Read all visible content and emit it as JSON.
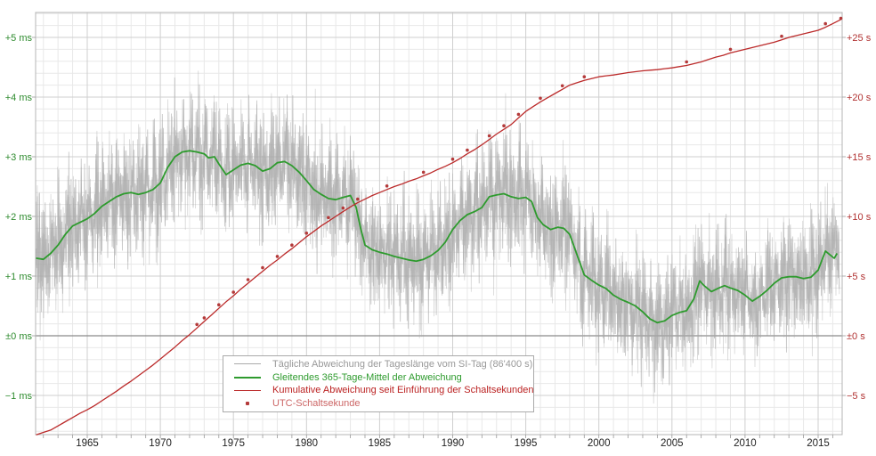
{
  "chart_data": {
    "type": "line",
    "x_axis": {
      "tick_labels": [
        "1965",
        "1970",
        "1975",
        "1980",
        "1985",
        "1990",
        "1995",
        "2000",
        "2005",
        "2010",
        "2015"
      ],
      "tick_values": [
        1965,
        1970,
        1975,
        1980,
        1985,
        1990,
        1995,
        2000,
        2005,
        2010,
        2015
      ],
      "minor_step_years": 1,
      "major_step_years": 5,
      "range": [
        1961.47,
        2016.65
      ],
      "label_color": "#222222"
    },
    "y_axis_left": {
      "unit": "ms",
      "tick_labels": [
        "+5 ms",
        "+4 ms",
        "+3 ms",
        "+2 ms",
        "+1 ms",
        "±0 ms",
        "−1 ms"
      ],
      "tick_values": [
        5,
        4,
        3,
        2,
        1,
        0,
        -1
      ],
      "range_ms": [
        -1.66,
        5.42
      ],
      "label_color": "#2e8b2e"
    },
    "y_axis_right": {
      "unit": "s",
      "tick_labels": [
        "+25 s",
        "+20 s",
        "+15 s",
        "+10 s",
        "+5 s",
        "±0 s",
        "−5 s"
      ],
      "tick_values": [
        25,
        20,
        15,
        10,
        5,
        0,
        -5
      ],
      "range_s": [
        -8.3,
        27.1
      ],
      "seconds_per_ms": 5,
      "label_color": "#b03030"
    },
    "grid": {
      "minor_color": "#e8e8e8",
      "major_color": "#cfcfcf",
      "zero_line_color": "#8a8a8a",
      "border_color": "#b4b4b4",
      "tick_color": "#999999"
    },
    "series": [
      {
        "name": "daily-deviation",
        "legend": "Tägliche Abweichung der Tageslänge vom SI-Tag (86'400 s)",
        "legend_color": "#999999",
        "color": "#a6a6a6",
        "axis": "left",
        "type": "noise-band",
        "noise": {
          "seeds": [
            11,
            23
          ],
          "step_years": 0.0385,
          "semiannual_amp": 0.28,
          "spike_base": 0.15,
          "spike_rand": 0.85,
          "spike_scale": 0.95,
          "boost_chance": 0.08,
          "boost_factor": 1.35,
          "opacities": [
            0.7,
            0.45
          ]
        }
      },
      {
        "name": "mean-365",
        "legend": "Gleitendes 365-Tage-Mittel der Abweichung",
        "legend_color": "#2e9b2e",
        "color": "#2e9b2e",
        "axis": "left",
        "type": "line",
        "points": [
          [
            1961.5,
            1.3
          ],
          [
            1962,
            1.28
          ],
          [
            1962.5,
            1.38
          ],
          [
            1963,
            1.52
          ],
          [
            1963.5,
            1.7
          ],
          [
            1964,
            1.84
          ],
          [
            1964.5,
            1.9
          ],
          [
            1965,
            1.96
          ],
          [
            1965.5,
            2.05
          ],
          [
            1966,
            2.17
          ],
          [
            1966.5,
            2.25
          ],
          [
            1967,
            2.33
          ],
          [
            1967.5,
            2.38
          ],
          [
            1968,
            2.4
          ],
          [
            1968.5,
            2.37
          ],
          [
            1969,
            2.4
          ],
          [
            1969.5,
            2.45
          ],
          [
            1970,
            2.56
          ],
          [
            1970.5,
            2.82
          ],
          [
            1971,
            3.0
          ],
          [
            1971.5,
            3.08
          ],
          [
            1972,
            3.1
          ],
          [
            1972.5,
            3.08
          ],
          [
            1973,
            3.05
          ],
          [
            1973.3,
            2.98
          ],
          [
            1973.7,
            3.0
          ],
          [
            1974,
            2.88
          ],
          [
            1974.5,
            2.7
          ],
          [
            1975,
            2.78
          ],
          [
            1975.5,
            2.86
          ],
          [
            1976,
            2.89
          ],
          [
            1976.5,
            2.85
          ],
          [
            1977,
            2.76
          ],
          [
            1977.5,
            2.8
          ],
          [
            1978,
            2.9
          ],
          [
            1978.5,
            2.92
          ],
          [
            1979,
            2.85
          ],
          [
            1979.5,
            2.74
          ],
          [
            1980,
            2.6
          ],
          [
            1980.5,
            2.45
          ],
          [
            1981,
            2.37
          ],
          [
            1981.5,
            2.3
          ],
          [
            1982,
            2.28
          ],
          [
            1982.5,
            2.32
          ],
          [
            1983,
            2.35
          ],
          [
            1983.4,
            2.15
          ],
          [
            1983.7,
            1.8
          ],
          [
            1984,
            1.52
          ],
          [
            1984.5,
            1.44
          ],
          [
            1985,
            1.4
          ],
          [
            1985.5,
            1.37
          ],
          [
            1986,
            1.33
          ],
          [
            1986.5,
            1.3
          ],
          [
            1987,
            1.27
          ],
          [
            1987.5,
            1.25
          ],
          [
            1988,
            1.28
          ],
          [
            1988.5,
            1.34
          ],
          [
            1989,
            1.43
          ],
          [
            1989.5,
            1.57
          ],
          [
            1990,
            1.78
          ],
          [
            1990.5,
            1.93
          ],
          [
            1991,
            2.03
          ],
          [
            1991.5,
            2.08
          ],
          [
            1992,
            2.15
          ],
          [
            1992.5,
            2.33
          ],
          [
            1993,
            2.36
          ],
          [
            1993.5,
            2.38
          ],
          [
            1994,
            2.33
          ],
          [
            1994.5,
            2.3
          ],
          [
            1995,
            2.32
          ],
          [
            1995.4,
            2.25
          ],
          [
            1995.8,
            1.98
          ],
          [
            1996.2,
            1.86
          ],
          [
            1996.7,
            1.78
          ],
          [
            1997.2,
            1.82
          ],
          [
            1997.6,
            1.8
          ],
          [
            1998,
            1.7
          ],
          [
            1998.5,
            1.36
          ],
          [
            1999,
            1.02
          ],
          [
            1999.5,
            0.93
          ],
          [
            2000,
            0.85
          ],
          [
            2000.5,
            0.79
          ],
          [
            2001,
            0.68
          ],
          [
            2001.5,
            0.61
          ],
          [
            2002,
            0.56
          ],
          [
            2002.5,
            0.5
          ],
          [
            2003,
            0.4
          ],
          [
            2003.5,
            0.28
          ],
          [
            2004,
            0.22
          ],
          [
            2004.5,
            0.25
          ],
          [
            2005,
            0.34
          ],
          [
            2005.5,
            0.39
          ],
          [
            2006,
            0.42
          ],
          [
            2006.5,
            0.62
          ],
          [
            2006.9,
            0.92
          ],
          [
            2007.2,
            0.84
          ],
          [
            2007.7,
            0.74
          ],
          [
            2008.2,
            0.8
          ],
          [
            2008.6,
            0.84
          ],
          [
            2009,
            0.8
          ],
          [
            2009.5,
            0.76
          ],
          [
            2010,
            0.68
          ],
          [
            2010.5,
            0.58
          ],
          [
            2011,
            0.66
          ],
          [
            2011.5,
            0.76
          ],
          [
            2012,
            0.88
          ],
          [
            2012.5,
            0.97
          ],
          [
            2013,
            0.99
          ],
          [
            2013.5,
            0.99
          ],
          [
            2014,
            0.96
          ],
          [
            2014.5,
            0.98
          ],
          [
            2015,
            1.1
          ],
          [
            2015.5,
            1.42
          ],
          [
            2015.8,
            1.36
          ],
          [
            2016.1,
            1.3
          ],
          [
            2016.3,
            1.38
          ]
        ]
      },
      {
        "name": "cumulative-deviation",
        "legend": "Kumulative Abweichung seit Einführung der Schaltsekunden",
        "legend_color": "#bb2222",
        "color": "#bb2a2a",
        "axis": "right",
        "type": "line",
        "points": [
          [
            1961.5,
            -8.3
          ],
          [
            1962,
            -8.1
          ],
          [
            1962.5,
            -7.9
          ],
          [
            1963,
            -7.55
          ],
          [
            1963.5,
            -7.2
          ],
          [
            1964,
            -6.85
          ],
          [
            1964.5,
            -6.5
          ],
          [
            1965,
            -6.2
          ],
          [
            1965.5,
            -5.85
          ],
          [
            1966,
            -5.45
          ],
          [
            1966.5,
            -5.05
          ],
          [
            1967,
            -4.65
          ],
          [
            1967.5,
            -4.2
          ],
          [
            1968,
            -3.8
          ],
          [
            1968.5,
            -3.35
          ],
          [
            1969,
            -2.9
          ],
          [
            1969.5,
            -2.45
          ],
          [
            1970,
            -1.95
          ],
          [
            1970.5,
            -1.45
          ],
          [
            1971,
            -0.95
          ],
          [
            1971.5,
            -0.4
          ],
          [
            1972,
            0.1
          ],
          [
            1972.5,
            0.65
          ],
          [
            1973,
            1.2
          ],
          [
            1973.5,
            1.75
          ],
          [
            1974,
            2.3
          ],
          [
            1974.5,
            2.85
          ],
          [
            1975,
            3.35
          ],
          [
            1975.5,
            3.9
          ],
          [
            1976,
            4.4
          ],
          [
            1976.5,
            4.9
          ],
          [
            1977,
            5.4
          ],
          [
            1977.5,
            5.9
          ],
          [
            1978,
            6.35
          ],
          [
            1978.5,
            6.85
          ],
          [
            1979,
            7.3
          ],
          [
            1979.5,
            7.8
          ],
          [
            1980,
            8.3
          ],
          [
            1980.5,
            8.75
          ],
          [
            1981,
            9.2
          ],
          [
            1981.5,
            9.6
          ],
          [
            1982,
            10.0
          ],
          [
            1982.5,
            10.4
          ],
          [
            1983,
            10.8
          ],
          [
            1983.5,
            11.15
          ],
          [
            1984,
            11.45
          ],
          [
            1984.5,
            11.75
          ],
          [
            1985,
            12.0
          ],
          [
            1985.5,
            12.25
          ],
          [
            1986,
            12.5
          ],
          [
            1986.5,
            12.7
          ],
          [
            1987,
            12.95
          ],
          [
            1987.5,
            13.15
          ],
          [
            1988,
            13.4
          ],
          [
            1988.5,
            13.65
          ],
          [
            1989,
            13.95
          ],
          [
            1989.5,
            14.2
          ],
          [
            1990,
            14.5
          ],
          [
            1990.5,
            14.85
          ],
          [
            1991,
            15.25
          ],
          [
            1991.5,
            15.6
          ],
          [
            1992,
            16.0
          ],
          [
            1992.5,
            16.45
          ],
          [
            1993,
            16.9
          ],
          [
            1993.5,
            17.3
          ],
          [
            1994,
            17.7
          ],
          [
            1994.5,
            18.25
          ],
          [
            1995,
            18.8
          ],
          [
            1995.5,
            19.2
          ],
          [
            1996,
            19.6
          ],
          [
            1996.5,
            19.95
          ],
          [
            1997,
            20.3
          ],
          [
            1997.5,
            20.65
          ],
          [
            1998,
            21.0
          ],
          [
            1998.5,
            21.2
          ],
          [
            1999,
            21.4
          ],
          [
            1999.5,
            21.55
          ],
          [
            2000,
            21.7
          ],
          [
            2000.5,
            21.78
          ],
          [
            2001,
            21.85
          ],
          [
            2001.5,
            21.95
          ],
          [
            2002,
            22.05
          ],
          [
            2002.5,
            22.13
          ],
          [
            2003,
            22.2
          ],
          [
            2003.5,
            22.25
          ],
          [
            2004,
            22.3
          ],
          [
            2004.5,
            22.38
          ],
          [
            2005,
            22.45
          ],
          [
            2005.5,
            22.55
          ],
          [
            2006,
            22.65
          ],
          [
            2006.5,
            22.8
          ],
          [
            2007,
            22.95
          ],
          [
            2007.5,
            23.15
          ],
          [
            2008,
            23.35
          ],
          [
            2008.5,
            23.5
          ],
          [
            2009,
            23.7
          ],
          [
            2009.5,
            23.85
          ],
          [
            2010,
            24.0
          ],
          [
            2010.5,
            24.15
          ],
          [
            2011,
            24.3
          ],
          [
            2011.5,
            24.45
          ],
          [
            2012,
            24.6
          ],
          [
            2012.5,
            24.8
          ],
          [
            2013,
            25.0
          ],
          [
            2013.5,
            25.15
          ],
          [
            2014,
            25.3
          ],
          [
            2014.5,
            25.45
          ],
          [
            2015,
            25.6
          ],
          [
            2015.5,
            25.85
          ],
          [
            2016,
            26.15
          ],
          [
            2016.55,
            26.5
          ]
        ]
      },
      {
        "name": "utc-leap-second",
        "legend": "UTC-Schaltsekunde",
        "legend_color": "#cc6666",
        "color": "#b43a3a",
        "axis": "right",
        "type": "scatter",
        "points": [
          [
            1972.5,
            0.95
          ],
          [
            1973.0,
            1.5
          ],
          [
            1974.0,
            2.6
          ],
          [
            1975.0,
            3.65
          ],
          [
            1976.0,
            4.7
          ],
          [
            1977.0,
            5.7
          ],
          [
            1978.0,
            6.65
          ],
          [
            1979.0,
            7.6
          ],
          [
            1980.0,
            8.6
          ],
          [
            1981.5,
            9.9
          ],
          [
            1982.5,
            10.7
          ],
          [
            1983.5,
            11.45
          ],
          [
            1985.5,
            12.55
          ],
          [
            1988.0,
            13.7
          ],
          [
            1990.0,
            14.8
          ],
          [
            1991.0,
            15.55
          ],
          [
            1992.5,
            16.75
          ],
          [
            1993.5,
            17.6
          ],
          [
            1994.5,
            18.55
          ],
          [
            1996.0,
            19.9
          ],
          [
            1997.5,
            20.95
          ],
          [
            1999.0,
            21.7
          ],
          [
            2006.0,
            22.95
          ],
          [
            2009.0,
            24.0
          ],
          [
            2012.5,
            25.1
          ],
          [
            2015.5,
            26.15
          ],
          [
            2016.55,
            26.6
          ]
        ]
      }
    ]
  }
}
